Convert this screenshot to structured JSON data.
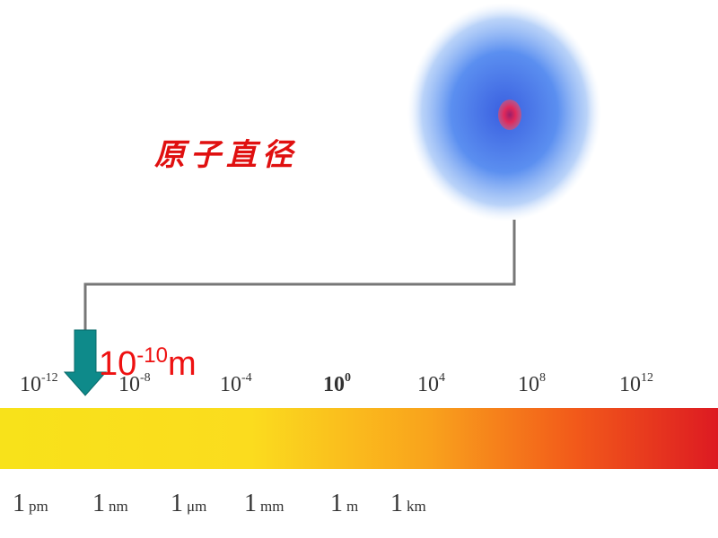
{
  "title": "原子直径",
  "annotation": {
    "base": "10",
    "exponent": "-10",
    "unit": "m"
  },
  "scale": {
    "powers": [
      {
        "base": "10",
        "exponent": "-12"
      },
      {
        "base": "10",
        "exponent": "-8"
      },
      {
        "base": "10",
        "exponent": "-4"
      },
      {
        "base": "10",
        "exponent": "0"
      },
      {
        "base": "10",
        "exponent": "4"
      },
      {
        "base": "10",
        "exponent": "8"
      },
      {
        "base": "10",
        "exponent": "12"
      }
    ],
    "units": [
      {
        "number": "1",
        "unit": "pm"
      },
      {
        "number": "1",
        "unit": "nm"
      },
      {
        "number": "1",
        "unit": "μm"
      },
      {
        "number": "1",
        "unit": "mm"
      },
      {
        "number": "1",
        "unit": "m"
      },
      {
        "number": "1",
        "unit": "km"
      }
    ]
  }
}
